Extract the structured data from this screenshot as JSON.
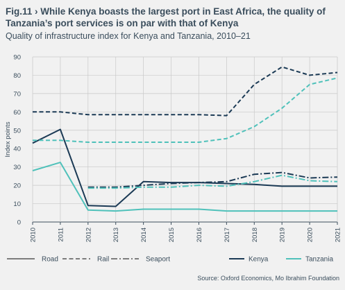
{
  "header": {
    "title": "Fig.11 › While Kenya boasts the largest port in East Africa, the quality of Tanzania’s port services is on par with that of Kenya",
    "subtitle": "Quality of infrastructure index for Kenya and Tanzania, 2010–21"
  },
  "source": "Source: Oxford Economics, Mo Ibrahim Foundation",
  "colors": {
    "kenya": "#1b3a55",
    "tanzania": "#4fc1ba",
    "grid": "#c8c8c8",
    "axis": "#3a4d5c",
    "background": "#f1f1f1"
  },
  "legend": {
    "styles": [
      {
        "label": "Road",
        "dash": "solid"
      },
      {
        "label": "Rail",
        "dash": "dashed"
      },
      {
        "label": "Seaport",
        "dash": "dashdot"
      }
    ],
    "countries": [
      {
        "label": "Kenya",
        "color_key": "kenya"
      },
      {
        "label": "Tanzania",
        "color_key": "tanzania"
      }
    ]
  },
  "chart_data": {
    "type": "line",
    "title": "",
    "xlabel": "",
    "ylabel": "Index points",
    "x": [
      "2010",
      "2011",
      "2012",
      "2013",
      "2014",
      "2015",
      "2016",
      "2017",
      "2018",
      "2019",
      "2020",
      "2021"
    ],
    "ylim": [
      0,
      90
    ],
    "yticks": [
      0,
      10,
      20,
      30,
      40,
      50,
      60,
      70,
      80,
      90
    ],
    "grid": true,
    "series": [
      {
        "name": "Kenya Road",
        "country": "Kenya",
        "kind": "Road",
        "values": [
          43,
          50.5,
          9,
          8.5,
          22,
          21.5,
          21.5,
          21,
          20.5,
          19.5,
          19.5,
          19.5
        ]
      },
      {
        "name": "Kenya Rail",
        "country": "Kenya",
        "kind": "Rail",
        "values": [
          60,
          60,
          58.5,
          58.5,
          58.5,
          58.5,
          58.5,
          58,
          75,
          84.5,
          80,
          81.5
        ]
      },
      {
        "name": "Kenya Seaport",
        "country": "Kenya",
        "kind": "Seaport",
        "values": [
          null,
          null,
          19,
          19,
          20,
          21,
          21.5,
          22,
          26,
          27,
          24,
          24.5
        ]
      },
      {
        "name": "Tanzania Road",
        "country": "Tanzania",
        "kind": "Road",
        "values": [
          28,
          32.5,
          6.5,
          6,
          7,
          7,
          7,
          6,
          6,
          6,
          6,
          6
        ]
      },
      {
        "name": "Tanzania Rail",
        "country": "Tanzania",
        "kind": "Rail",
        "values": [
          44.5,
          44.5,
          43.5,
          43.5,
          43.5,
          43.5,
          43.5,
          45.5,
          52,
          62,
          75,
          78.5
        ]
      },
      {
        "name": "Tanzania Seaport",
        "country": "Tanzania",
        "kind": "Seaport",
        "values": [
          null,
          null,
          18.5,
          18.5,
          19,
          19,
          20,
          19.5,
          22,
          25.5,
          22.5,
          22
        ]
      }
    ]
  }
}
